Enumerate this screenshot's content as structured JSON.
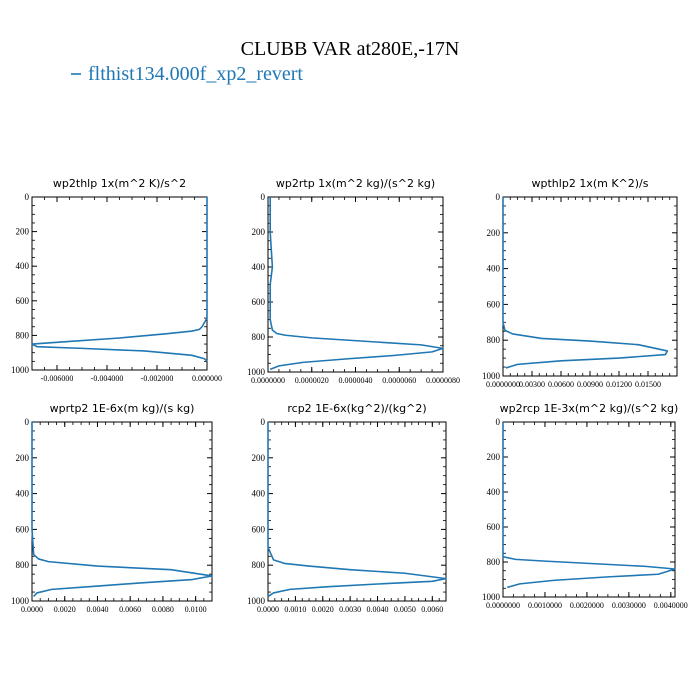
{
  "figure": {
    "title": "CLUBB VAR at280E,-17N",
    "legend_label": "flthist134.000f_xp2_revert",
    "line_color": "#1f77b4"
  },
  "chart_data": [
    {
      "type": "line",
      "title": "wp2thlp  1x(m^2 K)/s^2",
      "xlim": [
        -0.007,
        0.0
      ],
      "ylim": [
        1000,
        0
      ],
      "xticks": [
        "-0.006000",
        "-0.004000",
        "-0.002000",
        "0.000000"
      ],
      "xtick_values": [
        -0.006,
        -0.004,
        -0.002,
        0.0
      ],
      "yticks": [
        "0",
        "200",
        "400",
        "600",
        "800",
        "1000"
      ],
      "series": [
        {
          "x": [
            0.0,
            0.0,
            0.0,
            0.0,
            0.0,
            0.0,
            -0.0002,
            -0.0003,
            -0.0006,
            -0.0016,
            -0.0035,
            -0.0055,
            -0.007,
            -0.0068,
            -0.005,
            -0.0025,
            -0.0006,
            -0.0001,
            0.0
          ],
          "y": [
            0,
            200,
            350,
            400,
            450,
            700,
            750,
            765,
            775,
            790,
            815,
            835,
            850,
            865,
            875,
            890,
            915,
            935,
            950
          ]
        }
      ]
    },
    {
      "type": "line",
      "title": "wp2rtp  1x(m^2 kg)/(s^2 kg)",
      "xlim": [
        0.0,
        8e-06
      ],
      "ylim": [
        1000,
        0
      ],
      "xticks": [
        "0.0000000",
        "0.0000020",
        "0.0000040",
        "0.0000060",
        "0.0000080"
      ],
      "xtick_values": [
        0.0,
        2e-06,
        4e-06,
        6e-06,
        8e-06
      ],
      "yticks": [
        "0",
        "200",
        "400",
        "600",
        "800",
        "1000"
      ],
      "series": [
        {
          "x": [
            1e-07,
            1e-07,
            2e-07,
            1e-07,
            1e-07,
            2e-07,
            4e-07,
            8e-07,
            2e-06,
            4.5e-06,
            7e-06,
            8e-06,
            7.5e-06,
            5.8e-06,
            3.6e-06,
            1.6e-06,
            5e-07,
            1e-07
          ],
          "y": [
            0,
            200,
            400,
            500,
            700,
            760,
            780,
            790,
            805,
            825,
            845,
            865,
            885,
            905,
            925,
            945,
            965,
            985
          ]
        }
      ]
    },
    {
      "type": "line",
      "title": "wpthlp2  1x(m K^2)/s",
      "xlim": [
        0.0,
        0.018
      ],
      "ylim": [
        1000,
        0
      ],
      "xticks": [
        "0.0000000",
        "0.00300",
        "0.00600",
        "0.00900",
        "0.01200",
        "0.01500"
      ],
      "xtick_values": [
        0.0,
        0.003,
        0.006,
        0.009,
        0.012,
        0.015
      ],
      "yticks": [
        "0",
        "200",
        "400",
        "600",
        "800",
        "1000"
      ],
      "series": [
        {
          "x": [
            0.0,
            0.0,
            0.0,
            0.0,
            0.0002,
            0.001,
            0.004,
            0.009,
            0.014,
            0.017,
            0.0168,
            0.012,
            0.006,
            0.0015,
            0.0003
          ],
          "y": [
            0,
            200,
            400,
            700,
            745,
            765,
            790,
            805,
            825,
            860,
            880,
            900,
            915,
            935,
            955
          ]
        }
      ]
    },
    {
      "type": "line",
      "title": "wprtp2  1E-6x(m kg)/(s kg)",
      "xlim": [
        0.0,
        0.011
      ],
      "ylim": [
        1000,
        0
      ],
      "xticks": [
        "0.0000",
        "0.0020",
        "0.0040",
        "0.0060",
        "0.0080",
        "0.0100"
      ],
      "xtick_values": [
        0.0,
        0.002,
        0.004,
        0.006,
        0.008,
        0.01
      ],
      "yticks": [
        "0",
        "200",
        "400",
        "600",
        "800",
        "1000"
      ],
      "series": [
        {
          "x": [
            0.0,
            0.0,
            0.0,
            0.0001,
            0.0004,
            0.001,
            0.004,
            0.0085,
            0.011,
            0.0098,
            0.0065,
            0.0035,
            0.0012,
            0.0003,
            0.0001
          ],
          "y": [
            0,
            300,
            600,
            740,
            765,
            780,
            805,
            825,
            860,
            880,
            900,
            920,
            935,
            955,
            975
          ]
        }
      ]
    },
    {
      "type": "line",
      "title": "rcp2  1E-6x(kg^2)/(kg^2)",
      "xlim": [
        0.0,
        0.0065
      ],
      "ylim": [
        1000,
        0
      ],
      "xticks": [
        "0.0000",
        "0.0010",
        "0.0020",
        "0.0030",
        "0.0040",
        "0.0050",
        "0.0060"
      ],
      "xtick_values": [
        0.0,
        0.001,
        0.002,
        0.003,
        0.004,
        0.005,
        0.006
      ],
      "yticks": [
        "0",
        "200",
        "400",
        "600",
        "800",
        "1000"
      ],
      "series": [
        {
          "x": [
            0.0,
            0.0,
            0.0,
            0.0002,
            0.0006,
            0.0015,
            0.003,
            0.005,
            0.0065,
            0.006,
            0.004,
            0.0022,
            0.0008,
            0.0002,
            0.0
          ],
          "y": [
            0,
            300,
            700,
            770,
            790,
            805,
            825,
            845,
            875,
            890,
            905,
            920,
            935,
            955,
            975
          ]
        }
      ]
    },
    {
      "type": "line",
      "title": "wp2rcp  1E-3x(m^2 kg)/(s^2 kg)",
      "xlim": [
        0.0,
        0.0041
      ],
      "ylim": [
        1000,
        0
      ],
      "xticks": [
        "0.0000000",
        "0.0010000",
        "0.0020000",
        "0.0030000",
        "0.0040000"
      ],
      "xtick_values": [
        0.0,
        0.001,
        0.002,
        0.003,
        0.004
      ],
      "yticks": [
        "0",
        "200",
        "400",
        "600",
        "800",
        "1000"
      ],
      "series": [
        {
          "x": [
            0.0,
            0.0,
            0.0,
            0.0,
            0.0003,
            0.001,
            0.0022,
            0.0034,
            0.0041,
            0.0037,
            0.0025,
            0.0012,
            0.0004,
            0.0001
          ],
          "y": [
            0,
            300,
            700,
            770,
            785,
            795,
            810,
            825,
            840,
            870,
            885,
            905,
            925,
            945
          ]
        }
      ]
    }
  ]
}
